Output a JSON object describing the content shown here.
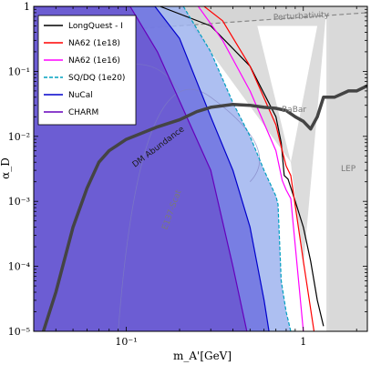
{
  "chart_data": {
    "type": "line",
    "xlabel": "m_A'[GeV]",
    "ylabel": "α_D",
    "xscale": "log",
    "yscale": "log",
    "xlim": [
      0.03,
      2.3
    ],
    "ylim": [
      1e-05,
      1
    ],
    "x_ticks": [
      {
        "value": 0.1,
        "label": "10⁻¹"
      },
      {
        "value": 1,
        "label": "1"
      }
    ],
    "y_ticks": [
      {
        "value": 1,
        "label": "1"
      },
      {
        "value": 0.1,
        "label": "10⁻¹"
      },
      {
        "value": 0.01,
        "label": "10⁻²"
      },
      {
        "value": 0.001,
        "label": "10⁻³"
      },
      {
        "value": 0.0001,
        "label": "10⁻⁴"
      },
      {
        "value": 1e-05,
        "label": "10⁻⁵"
      }
    ],
    "grid": false,
    "legend_position": "top-left",
    "series": [
      {
        "name": "LongQuest - I",
        "color": "#000000",
        "style": "solid",
        "x": [
          0.155,
          0.3,
          0.5,
          0.7,
          0.75,
          0.78,
          0.82,
          0.9,
          1.0,
          1.1,
          1.2,
          1.3
        ],
        "y": [
          1,
          0.5,
          0.12,
          0.02,
          0.008,
          0.0025,
          0.0022,
          0.001,
          0.0004,
          0.00012,
          3e-05,
          1.2e-05
        ]
      },
      {
        "name": "NA62 (1e18)",
        "color": "#ff0000",
        "style": "solid",
        "x": [
          0.275,
          0.35,
          0.5,
          0.7,
          0.76,
          0.8,
          0.85,
          1.0,
          1.15
        ],
        "y": [
          1,
          0.6,
          0.12,
          0.015,
          0.006,
          0.0035,
          0.0025,
          0.00012,
          1e-05
        ]
      },
      {
        "name": "NA62 (1e16)",
        "color": "#ff00ff",
        "style": "solid",
        "x": [
          0.255,
          0.35,
          0.5,
          0.7,
          0.76,
          0.8,
          0.85,
          1.0
        ],
        "y": [
          1,
          0.3,
          0.05,
          0.006,
          0.0021,
          0.0015,
          0.0011,
          1e-05
        ]
      },
      {
        "name": "SQ/DQ (1e20)",
        "color": "#00a0c0",
        "style": "dashed",
        "x": [
          0.21,
          0.3,
          0.4,
          0.5,
          0.6,
          0.7,
          0.72,
          0.75,
          0.8,
          0.85,
          0.9
        ],
        "y": [
          1,
          0.2,
          0.033,
          0.01,
          0.003,
          0.0012,
          0.0009,
          6e-05,
          2e-05,
          1e-05,
          1e-05
        ]
      },
      {
        "name": "NuCal",
        "color": "#0000cc",
        "style": "solid",
        "x": [
          0.03,
          0.145,
          0.2,
          0.3,
          0.4,
          0.5,
          0.6,
          0.64
        ],
        "y": [
          1,
          1,
          0.32,
          0.02,
          0.003,
          0.0004,
          3e-05,
          1e-05
        ]
      },
      {
        "name": "CHARM",
        "color": "#6600bb",
        "style": "solid",
        "x": [
          0.03,
          0.105,
          0.15,
          0.2,
          0.3,
          0.4,
          0.48
        ],
        "y": [
          1,
          1,
          0.2,
          0.035,
          0.003,
          0.0001,
          1e-05
        ]
      },
      {
        "name": "DM Abundance",
        "color": "#444444",
        "style": "thick",
        "x": [
          0.034,
          0.04,
          0.05,
          0.06,
          0.07,
          0.08,
          0.1,
          0.15,
          0.2,
          0.25,
          0.3,
          0.4,
          0.5,
          0.6,
          0.7,
          0.8,
          0.9,
          1.0,
          1.1,
          1.2,
          1.3,
          1.5,
          1.8,
          2.0,
          2.3
        ],
        "y": [
          1e-05,
          4e-05,
          0.0004,
          0.0016,
          0.004,
          0.006,
          0.009,
          0.014,
          0.018,
          0.024,
          0.028,
          0.031,
          0.03,
          0.028,
          0.027,
          0.025,
          0.02,
          0.017,
          0.013,
          0.02,
          0.04,
          0.04,
          0.05,
          0.05,
          0.06
        ]
      }
    ],
    "regions": [
      {
        "name": "Perturbativity"
      },
      {
        "name": "BaBar"
      },
      {
        "name": "LEP"
      },
      {
        "name": "E137-Scat"
      }
    ]
  }
}
